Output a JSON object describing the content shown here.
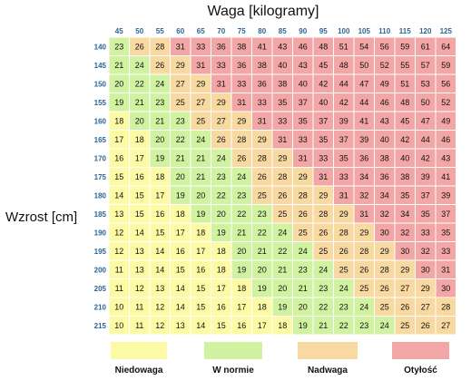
{
  "chart_data": {
    "type": "heatmap",
    "title": "Waga [kilogramy]",
    "xlabel": "Waga [kilogramy]",
    "ylabel": "Wzrost [cm]",
    "x": [
      45,
      50,
      55,
      60,
      65,
      70,
      75,
      80,
      85,
      90,
      95,
      100,
      105,
      110,
      115,
      120,
      125
    ],
    "y": [
      140,
      145,
      150,
      155,
      160,
      165,
      170,
      175,
      180,
      185,
      190,
      195,
      200,
      205,
      210,
      215
    ],
    "values": [
      [
        23,
        26,
        28,
        31,
        33,
        36,
        38,
        41,
        43,
        46,
        48,
        51,
        54,
        56,
        59,
        61,
        64
      ],
      [
        21,
        24,
        26,
        29,
        31,
        33,
        36,
        38,
        40,
        43,
        45,
        48,
        50,
        52,
        55,
        57,
        59
      ],
      [
        20,
        22,
        24,
        27,
        29,
        31,
        33,
        36,
        38,
        40,
        42,
        44,
        47,
        49,
        51,
        53,
        56
      ],
      [
        19,
        21,
        23,
        25,
        27,
        29,
        31,
        33,
        35,
        37,
        40,
        42,
        44,
        46,
        48,
        50,
        52
      ],
      [
        18,
        20,
        21,
        23,
        25,
        27,
        29,
        31,
        33,
        35,
        37,
        39,
        41,
        43,
        45,
        47,
        49
      ],
      [
        17,
        18,
        20,
        22,
        24,
        26,
        28,
        29,
        31,
        33,
        35,
        37,
        39,
        40,
        42,
        44,
        46
      ],
      [
        16,
        17,
        19,
        21,
        21,
        24,
        26,
        28,
        29,
        31,
        33,
        35,
        36,
        38,
        40,
        42,
        43
      ],
      [
        15,
        16,
        18,
        20,
        21,
        23,
        24,
        26,
        28,
        29,
        31,
        33,
        34,
        36,
        38,
        39,
        41
      ],
      [
        14,
        15,
        17,
        19,
        20,
        22,
        23,
        25,
        26,
        28,
        29,
        31,
        32,
        34,
        35,
        37,
        39
      ],
      [
        13,
        15,
        16,
        18,
        19,
        20,
        22,
        23,
        25,
        26,
        28,
        29,
        31,
        32,
        34,
        35,
        37
      ],
      [
        12,
        14,
        15,
        17,
        18,
        19,
        21,
        22,
        24,
        25,
        26,
        28,
        29,
        30,
        32,
        33,
        35
      ],
      [
        12,
        13,
        14,
        16,
        17,
        18,
        20,
        21,
        22,
        24,
        25,
        26,
        28,
        29,
        30,
        32,
        33
      ],
      [
        11,
        13,
        14,
        15,
        16,
        18,
        19,
        20,
        21,
        23,
        24,
        25,
        26,
        28,
        29,
        30,
        31
      ],
      [
        11,
        12,
        13,
        14,
        15,
        17,
        18,
        19,
        20,
        21,
        23,
        24,
        25,
        26,
        27,
        29,
        30
      ],
      [
        10,
        11,
        12,
        14,
        15,
        16,
        17,
        18,
        19,
        20,
        22,
        23,
        24,
        25,
        26,
        27,
        28
      ],
      [
        10,
        11,
        12,
        13,
        14,
        15,
        16,
        17,
        18,
        19,
        21,
        22,
        23,
        24,
        25,
        26,
        27
      ]
    ],
    "categories_legend": [
      {
        "label": "Niedowaga",
        "color": "#fdfaa6",
        "range": [
          0,
          18.5
        ]
      },
      {
        "label": "W normie",
        "color": "#d1f2a1",
        "range": [
          18.5,
          25
        ]
      },
      {
        "label": "Nadwaga",
        "color": "#f8d9a1",
        "range": [
          25,
          30
        ]
      },
      {
        "label": "Otyłość",
        "color": "#f3a6a6",
        "range": [
          30,
          1000
        ]
      }
    ],
    "legend_position": "bottom",
    "grid": true
  }
}
